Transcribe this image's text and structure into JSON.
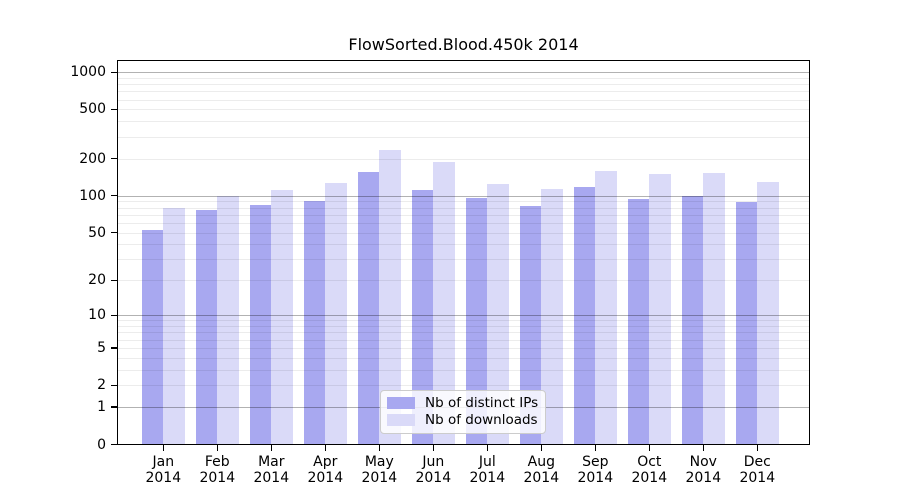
{
  "chart_data": {
    "type": "bar",
    "title": "FlowSorted.Blood.450k 2014",
    "year_label": "2014",
    "categories": [
      "Jan",
      "Feb",
      "Mar",
      "Apr",
      "May",
      "Jun",
      "Jul",
      "Aug",
      "Sep",
      "Oct",
      "Nov",
      "Dec"
    ],
    "series": [
      {
        "name": "Nb of distinct IPs",
        "color": "#a8a8f0",
        "values": [
          53,
          77,
          84,
          91,
          156,
          111,
          96,
          83,
          119,
          94,
          100,
          89
        ]
      },
      {
        "name": "Nb of downloads",
        "color": "#dadaf8",
        "values": [
          80,
          100,
          111,
          127,
          235,
          187,
          124,
          114,
          158,
          150,
          153,
          130
        ]
      }
    ],
    "y_scale": "log10(value+1)",
    "y_tick_values": [
      0,
      1,
      2,
      5,
      10,
      20,
      50,
      100,
      200,
      500,
      1000
    ],
    "y_tick_labels": [
      "0",
      "1",
      "2",
      "5",
      "10",
      "20",
      "50",
      "100",
      "200",
      "500",
      "1000"
    ],
    "y_major_gridlines": [
      1,
      10,
      100,
      1000
    ],
    "y_minor_gridlines": [
      2,
      3,
      4,
      5,
      6,
      7,
      8,
      9,
      20,
      30,
      40,
      50,
      60,
      70,
      80,
      90,
      200,
      300,
      400,
      500,
      600,
      700,
      800,
      900
    ],
    "ylim": [
      0,
      1270
    ],
    "grid": true,
    "legend_position": "lower-center-inside",
    "axis_color": "#000000",
    "background_color": "#ffffff"
  }
}
